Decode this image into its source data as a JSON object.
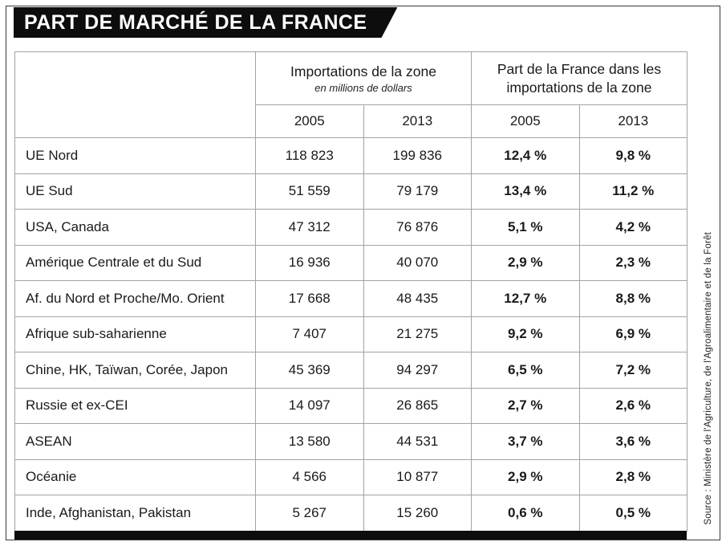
{
  "title": "PART DE MARCHÉ DE LA FRANCE",
  "source": "Source : Ministère de l'Agriculture, de l'Agroalimentaire et de la Forêt",
  "table": {
    "group_headers": [
      {
        "label": "Importations de la zone",
        "sublabel": "en millions de dollars"
      },
      {
        "label": "Part de la France dans les importations de la zone"
      }
    ],
    "year_headers": [
      "2005",
      "2013",
      "2005",
      "2013"
    ],
    "rows": [
      {
        "region": "UE Nord",
        "imports_2005": "118 823",
        "imports_2013": "199 836",
        "share_2005": "12,4 %",
        "share_2013": "9,8 %"
      },
      {
        "region": "UE Sud",
        "imports_2005": "51 559",
        "imports_2013": "79 179",
        "share_2005": "13,4 %",
        "share_2013": "11,2 %"
      },
      {
        "region": "USA, Canada",
        "imports_2005": "47 312",
        "imports_2013": "76 876",
        "share_2005": "5,1 %",
        "share_2013": "4,2 %"
      },
      {
        "region": "Amérique Centrale et du Sud",
        "imports_2005": "16 936",
        "imports_2013": "40 070",
        "share_2005": "2,9 %",
        "share_2013": "2,3 %"
      },
      {
        "region": "Af. du Nord et Proche/Mo. Orient",
        "imports_2005": "17 668",
        "imports_2013": "48 435",
        "share_2005": "12,7 %",
        "share_2013": "8,8 %"
      },
      {
        "region": "Afrique sub-saharienne",
        "imports_2005": "7 407",
        "imports_2013": "21 275",
        "share_2005": "9,2 %",
        "share_2013": "6,9 %"
      },
      {
        "region": "Chine, HK, Taïwan, Corée, Japon",
        "imports_2005": "45 369",
        "imports_2013": "94 297",
        "share_2005": "6,5 %",
        "share_2013": "7,2 %"
      },
      {
        "region": "Russie et ex-CEI",
        "imports_2005": "14 097",
        "imports_2013": "26 865",
        "share_2005": "2,7 %",
        "share_2013": "2,6 %"
      },
      {
        "region": "ASEAN",
        "imports_2005": "13 580",
        "imports_2013": "44 531",
        "share_2005": "3,7 %",
        "share_2013": "3,6 %"
      },
      {
        "region": "Océanie",
        "imports_2005": "4 566",
        "imports_2013": "10 877",
        "share_2005": "2,9 %",
        "share_2013": "2,8 %"
      },
      {
        "region": "Inde, Afghanistan, Pakistan",
        "imports_2005": "5 267",
        "imports_2013": "15 260",
        "share_2005": "0,6 %",
        "share_2013": "0,5 %"
      }
    ]
  },
  "chart_data": {
    "type": "table",
    "title": "PART DE MARCHÉ DE LA FRANCE",
    "column_groups": [
      "Importations de la zone (en millions de dollars)",
      "Part de la France dans les importations de la zone"
    ],
    "columns": [
      "Zone",
      "Importations 2005 (M$)",
      "Importations 2013 (M$)",
      "Part France 2005 (%)",
      "Part France 2013 (%)"
    ],
    "rows": [
      [
        "UE Nord",
        118823,
        199836,
        12.4,
        9.8
      ],
      [
        "UE Sud",
        51559,
        79179,
        13.4,
        11.2
      ],
      [
        "USA, Canada",
        47312,
        76876,
        5.1,
        4.2
      ],
      [
        "Amérique Centrale et du Sud",
        16936,
        40070,
        2.9,
        2.3
      ],
      [
        "Af. du Nord et Proche/Mo. Orient",
        17668,
        48435,
        12.7,
        8.8
      ],
      [
        "Afrique sub-saharienne",
        7407,
        21275,
        9.2,
        6.9
      ],
      [
        "Chine, HK, Taïwan, Corée, Japon",
        45369,
        94297,
        6.5,
        7.2
      ],
      [
        "Russie et ex-CEI",
        14097,
        26865,
        2.7,
        2.6
      ],
      [
        "ASEAN",
        13580,
        44531,
        3.7,
        3.6
      ],
      [
        "Océanie",
        4566,
        10877,
        2.9,
        2.8
      ],
      [
        "Inde, Afghanistan, Pakistan",
        5267,
        15260,
        0.6,
        0.5
      ]
    ],
    "source": "Ministère de l'Agriculture, de l'Agroalimentaire et de la Forêt",
    "colors": {
      "banner_bg": "#0d0d0d",
      "banner_text": "#ffffff",
      "grid": "#a3a3a3",
      "text": "#1a1a1a"
    }
  }
}
